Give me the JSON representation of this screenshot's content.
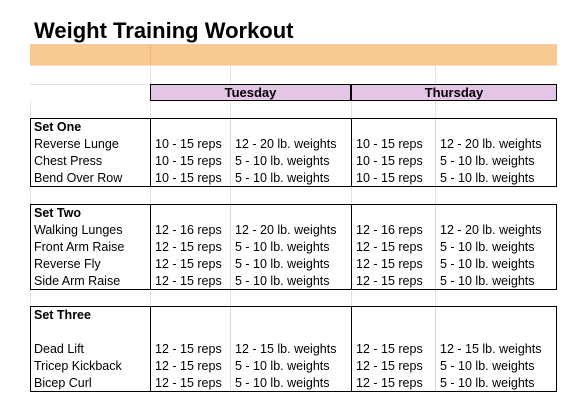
{
  "title": "Weight Training Workout",
  "days": [
    "Tuesday",
    "Thursday"
  ],
  "sections": [
    {
      "name": "Set One",
      "rows": [
        {
          "exercise": "Reverse Lunge",
          "tue_reps": "10 - 15 reps",
          "tue_weight": "12 - 20 lb. weights",
          "thu_reps": "10 - 15 reps",
          "thu_weight": "12 - 20 lb. weights"
        },
        {
          "exercise": "Chest Press",
          "tue_reps": "10 - 15 reps",
          "tue_weight": "5 - 10 lb. weights",
          "thu_reps": "10 - 15 reps",
          "thu_weight": "5 - 10 lb. weights"
        },
        {
          "exercise": "Bend Over Row",
          "tue_reps": "10 - 15 reps",
          "tue_weight": "5 - 10 lb. weights",
          "thu_reps": "10 - 15 reps",
          "thu_weight": "5 - 10 lb. weights"
        }
      ]
    },
    {
      "name": "Set Two",
      "rows": [
        {
          "exercise": "Walking Lunges",
          "tue_reps": "12 - 16 reps",
          "tue_weight": "12 - 20 lb. weights",
          "thu_reps": "12 - 16 reps",
          "thu_weight": "12 - 20 lb. weights"
        },
        {
          "exercise": "Front Arm Raise",
          "tue_reps": "12 - 15 reps",
          "tue_weight": "5 - 10 lb. weights",
          "thu_reps": "12 - 15 reps",
          "thu_weight": "5 - 10 lb. weights"
        },
        {
          "exercise": "Reverse Fly",
          "tue_reps": "12 - 15 reps",
          "tue_weight": "5 - 10 lb. weights",
          "thu_reps": "12 - 15 reps",
          "thu_weight": "5 - 10 lb. weights"
        },
        {
          "exercise": "Side Arm Raise",
          "tue_reps": "12 - 15 reps",
          "tue_weight": "5 - 10 lb. weights",
          "thu_reps": "12 - 15 reps",
          "thu_weight": "5 - 10 lb. weights"
        }
      ]
    },
    {
      "name": "Set Three",
      "rows": [
        {
          "exercise": "Dead Lift",
          "tue_reps": "12 - 15 reps",
          "tue_weight": "12 - 15 lb. weights",
          "thu_reps": "12 - 15 reps",
          "thu_weight": "12 - 15 lb. weights"
        },
        {
          "exercise": "Tricep Kickback",
          "tue_reps": "12 - 15 reps",
          "tue_weight": "5 - 10 lb. weights",
          "thu_reps": "12 - 15 reps",
          "thu_weight": "5 - 10 lb. weights"
        },
        {
          "exercise": "Bicep Curl",
          "tue_reps": "12 - 15 reps",
          "tue_weight": "5 - 10 lb. weights",
          "thu_reps": "12 - 15 reps",
          "thu_weight": "5 - 10 lb. weights"
        }
      ]
    }
  ],
  "colors": {
    "header_band": "#f9c994",
    "day_header": "#e5c5e5",
    "grid": "#e2e2e2",
    "border": "#000000"
  }
}
